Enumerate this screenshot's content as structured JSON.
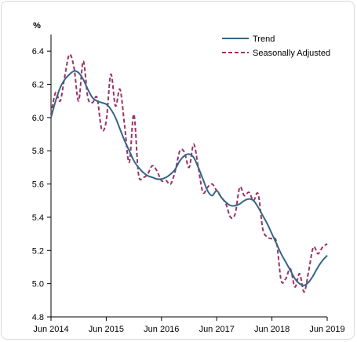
{
  "chart_data": {
    "type": "line",
    "ylabel": "%",
    "xlabel": "",
    "ylim": [
      4.8,
      6.5
    ],
    "yticks": [
      4.8,
      5.0,
      5.2,
      5.4,
      5.6,
      5.8,
      6.0,
      6.2,
      6.4
    ],
    "ytick_labels": [
      "4.8",
      "5.0",
      "5.2",
      "5.4",
      "5.6",
      "5.8",
      "6.0",
      "6.2",
      "6.4"
    ],
    "xlim": [
      0,
      60
    ],
    "xticks": [
      0,
      12,
      24,
      36,
      48,
      60
    ],
    "xtick_labels": [
      "Jun 2014",
      "Jun 2015",
      "Jun 2016",
      "Jun 2017",
      "Jun 2018",
      "Jun 2019"
    ],
    "x_unit": "months since Jun 2014",
    "grid": false,
    "legend_position": "top-right",
    "colors": {
      "trend": "#336688",
      "seasonally_adjusted": "#993366"
    },
    "series": [
      {
        "name": "Trend",
        "style": "solid",
        "x": [
          0,
          1,
          2,
          3,
          4,
          5,
          6,
          7,
          8,
          9,
          10,
          11,
          12,
          13,
          14,
          15,
          16,
          17,
          18,
          19,
          20,
          21,
          22,
          23,
          24,
          25,
          26,
          27,
          28,
          29,
          30,
          31,
          32,
          33,
          34,
          35,
          36,
          37,
          38,
          39,
          40,
          41,
          42,
          43,
          44,
          45,
          46,
          47,
          48,
          49,
          50,
          51,
          52,
          53,
          54,
          55,
          56,
          57,
          58,
          59,
          60
        ],
        "values": [
          6.0,
          6.1,
          6.18,
          6.23,
          6.26,
          6.28,
          6.27,
          6.23,
          6.17,
          6.12,
          6.1,
          6.09,
          6.08,
          6.05,
          6.0,
          5.93,
          5.86,
          5.8,
          5.74,
          5.7,
          5.67,
          5.65,
          5.64,
          5.63,
          5.63,
          5.64,
          5.66,
          5.69,
          5.74,
          5.77,
          5.78,
          5.76,
          5.7,
          5.63,
          5.56,
          5.53,
          5.56,
          5.52,
          5.49,
          5.47,
          5.47,
          5.48,
          5.5,
          5.51,
          5.5,
          5.46,
          5.41,
          5.36,
          5.3,
          5.24,
          5.18,
          5.13,
          5.08,
          5.03,
          5.0,
          4.99,
          5.01,
          5.05,
          5.1,
          5.14,
          5.17
        ]
      },
      {
        "name": "Seasonally Adjusted",
        "style": "dashed",
        "x": [
          0,
          1,
          2,
          3,
          4,
          5,
          6,
          7,
          8,
          9,
          10,
          11,
          12,
          13,
          14,
          15,
          16,
          17,
          18,
          19,
          20,
          21,
          22,
          23,
          24,
          25,
          26,
          27,
          28,
          29,
          30,
          31,
          32,
          33,
          34,
          35,
          36,
          37,
          38,
          39,
          40,
          41,
          42,
          43,
          44,
          45,
          46,
          47,
          48,
          49,
          50,
          51,
          52,
          53,
          54,
          55,
          56,
          57,
          58,
          59,
          60
        ],
        "values": [
          6.02,
          6.15,
          6.1,
          6.25,
          6.38,
          6.3,
          6.1,
          6.34,
          6.12,
          6.09,
          6.12,
          5.93,
          5.98,
          6.26,
          6.07,
          6.17,
          5.95,
          5.73,
          6.02,
          5.66,
          5.64,
          5.66,
          5.71,
          5.68,
          5.62,
          5.62,
          5.6,
          5.68,
          5.8,
          5.79,
          5.7,
          5.84,
          5.7,
          5.55,
          5.58,
          5.6,
          5.56,
          5.52,
          5.48,
          5.4,
          5.42,
          5.58,
          5.53,
          5.55,
          5.5,
          5.54,
          5.33,
          5.28,
          5.27,
          5.25,
          5.02,
          5.03,
          5.09,
          4.98,
          5.06,
          4.95,
          5.08,
          5.22,
          5.18,
          5.22,
          5.24
        ]
      }
    ]
  }
}
